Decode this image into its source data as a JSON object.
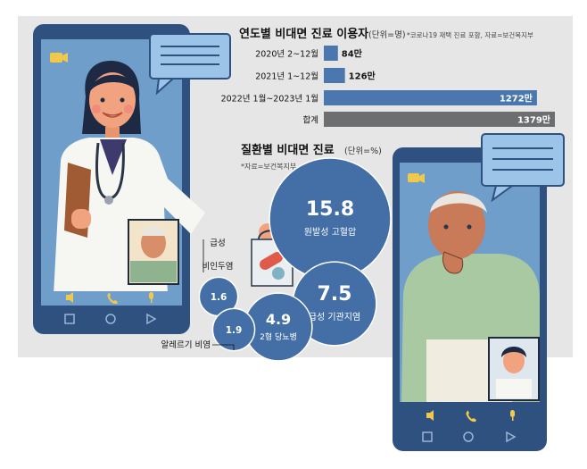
{
  "colors": {
    "panel_bg": "#e6e6e6",
    "bar_blue": "#4a77ad",
    "bar_gray": "#6d6e70",
    "bubble_blue": "#436fa6",
    "phone_frame": "#2f5180",
    "phone_screen": "#6f9ecb",
    "chat_bubble": "#9cc4e8"
  },
  "usage_chart": {
    "title": "연도별 비대면 진료 이용자",
    "unit": "(단위=명)",
    "note": "*코로나19 재택 진료 포함, 자료=보건복지부"
  },
  "disease_chart": {
    "title": "질환별 비대면 진료",
    "unit": "(단위=%)",
    "source": "*자료=보건복지부"
  },
  "phone_icons": [
    "video-camera-icon",
    "speaker-icon",
    "phone-icon",
    "microphone-icon",
    "square-nav-icon",
    "circle-nav-icon",
    "triangle-nav-icon"
  ],
  "chart_data": [
    {
      "type": "bar",
      "orientation": "horizontal",
      "title": "연도별 비대면 진료 이용자",
      "unit": "명",
      "categories": [
        "2020년 2~12월",
        "2021년 1~12월",
        "2022년 1월~2023년 1월",
        "합계"
      ],
      "values": [
        84,
        126,
        1272,
        1379
      ],
      "value_labels": [
        "84만",
        "126만",
        "1272만",
        "1379만"
      ],
      "bar_colors": [
        "#4a77ad",
        "#4a77ad",
        "#4a77ad",
        "#6d6e70"
      ],
      "xlim": [
        0,
        1379
      ]
    },
    {
      "type": "bubble",
      "title": "질환별 비대면 진료",
      "unit": "%",
      "categories": [
        "원발성 고혈압",
        "급성 기관지염",
        "2형 당뇨병",
        "급성 비인두염 (감기)",
        "알레르기 비염"
      ],
      "values": [
        15.8,
        7.5,
        4.9,
        1.6,
        1.9
      ],
      "value_labels": [
        "15.8",
        "7.5",
        "4.9",
        "1.6",
        "1.9"
      ]
    }
  ]
}
